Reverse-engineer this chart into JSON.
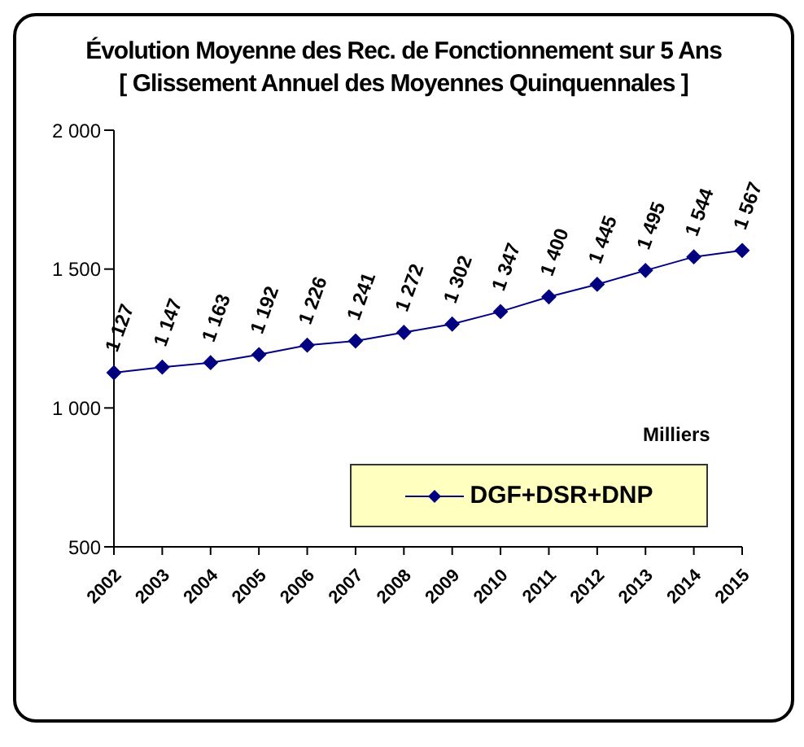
{
  "chart_data": {
    "type": "line",
    "title": "Évolution Moyenne des Rec. de Fonctionnement sur 5 Ans",
    "subtitle": "[ Glissement Annuel des Moyennes Quinquennales ]",
    "categories": [
      "2002",
      "2003",
      "2004",
      "2005",
      "2006",
      "2007",
      "2008",
      "2009",
      "2010",
      "2011",
      "2012",
      "2013",
      "2014",
      "2015"
    ],
    "series": [
      {
        "name": "DGF+DSR+DNP",
        "color": "#000080",
        "values": [
          1127,
          1147,
          1163,
          1192,
          1226,
          1241,
          1272,
          1302,
          1347,
          1400,
          1445,
          1495,
          1544,
          1567
        ],
        "value_labels": [
          "1 127",
          "1 147",
          "1 163",
          "1 192",
          "1 226",
          "1 241",
          "1 272",
          "1 302",
          "1 347",
          "1 400",
          "1 445",
          "1 495",
          "1 544",
          "1 567"
        ]
      }
    ],
    "ylim": [
      500,
      2000
    ],
    "yticks": [
      500,
      {
        "value": 1000,
        "label": "1 000"
      },
      {
        "value": 1500,
        "label": "1 500"
      },
      {
        "value": 2000,
        "label": "2 000"
      }
    ],
    "annotations": [
      "Milliers"
    ],
    "legend": "bottom right",
    "marker": "diamond",
    "grid": false
  }
}
